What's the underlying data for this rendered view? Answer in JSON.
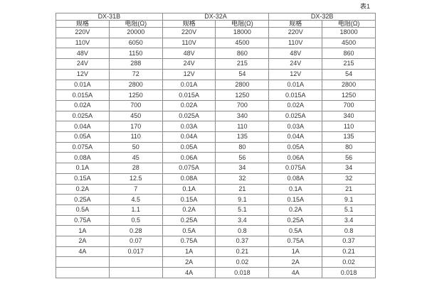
{
  "caption": "表1",
  "colors": {
    "background": "#ffffff",
    "border": "#8c8c8c",
    "text": "#333333"
  },
  "table": {
    "groups": [
      {
        "name": "DX-31B"
      },
      {
        "name": "DX-32A"
      },
      {
        "name": "DX-32B"
      }
    ],
    "col_headers": [
      "规格",
      "电阻(Ω)",
      "规格",
      "电阻(Ω)",
      "规格",
      "电阻(Ω)"
    ],
    "rows": [
      [
        "220V",
        "20000",
        "220V",
        "18000",
        "220V",
        "18000"
      ],
      [
        "110V",
        "6050",
        "110V",
        "4500",
        "110V",
        "4500"
      ],
      [
        "48V",
        "1150",
        "48V",
        "860",
        "48V",
        "860"
      ],
      [
        "24V",
        "288",
        "24V",
        "215",
        "24V",
        "215"
      ],
      [
        "12V",
        "72",
        "12V",
        "54",
        "12V",
        "54"
      ],
      [
        "0.01A",
        "2800",
        "0.01A",
        "2800",
        "0.01A",
        "2800"
      ],
      [
        "0.015A",
        "1250",
        "0.015A",
        "1250",
        "0.015A",
        "1250"
      ],
      [
        "0.02A",
        "700",
        "0.02A",
        "700",
        "0.02A",
        "700"
      ],
      [
        "0.025A",
        "450",
        "0.025A",
        "340",
        "0.025A",
        "340"
      ],
      [
        "0.04A",
        "170",
        "0.03A",
        "110",
        "0.03A",
        "110"
      ],
      [
        "0.05A",
        "110",
        "0.04A",
        "135",
        "0.04A",
        "135"
      ],
      [
        "0.075A",
        "50",
        "0.05A",
        "80",
        "0.05A",
        "80"
      ],
      [
        "0.08A",
        "45",
        "0.06A",
        "56",
        "0.06A",
        "56"
      ],
      [
        "0.1A",
        "28",
        "0.075A",
        "34",
        "0.075A",
        "34"
      ],
      [
        "0.15A",
        "12.5",
        "0.08A",
        "32",
        "0.08A",
        "32"
      ],
      [
        "0.2A",
        "7",
        "0.1A",
        "21",
        "0.1A",
        "21"
      ],
      [
        "0.25A",
        "4.5",
        "0.15A",
        "9.1",
        "0.15A",
        "9.1"
      ],
      [
        "0.5A",
        "1.1",
        "0.2A",
        "5.1",
        "0.2A",
        "5.1"
      ],
      [
        "0.75A",
        "0.5",
        "0.25A",
        "3.4",
        "0.25A",
        "3.4"
      ],
      [
        "1A",
        "0.28",
        "0.5A",
        "0.8",
        "0.5A",
        "0.8"
      ],
      [
        "2A",
        "0.07",
        "0.75A",
        "0.37",
        "0.75A",
        "0.37"
      ],
      [
        "4A",
        "0.017",
        "1A",
        "0.21",
        "1A",
        "0.21"
      ],
      [
        "",
        "",
        "2A",
        "0.02",
        "2A",
        "0.02"
      ],
      [
        "",
        "",
        "4A",
        "0.018",
        "4A",
        "0.018"
      ]
    ]
  }
}
